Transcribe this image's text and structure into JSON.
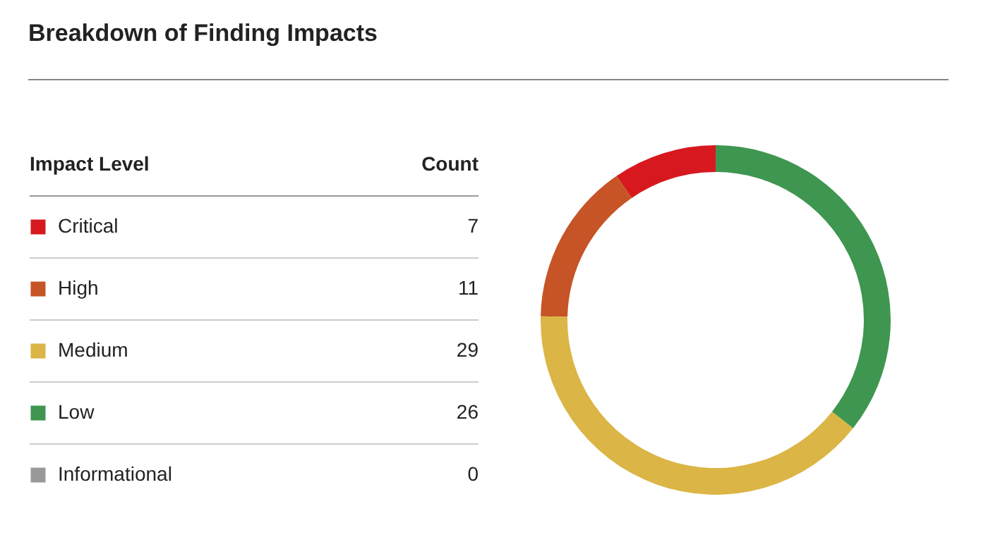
{
  "chart_data": {
    "type": "donut",
    "title": "Breakdown of Finding Impacts",
    "legend_title": "Impact Level",
    "annotations": [
      "Count"
    ],
    "categories": [
      "Critical",
      "High",
      "Medium",
      "Low",
      "Informational"
    ],
    "values": [
      7,
      11,
      29,
      26,
      0
    ],
    "colors": [
      "#d7191f",
      "#c65426",
      "#dbb545",
      "#3f9650",
      "#999999"
    ],
    "value_labels": [
      "7",
      "11",
      "29",
      "26",
      "0"
    ],
    "legend": "left"
  }
}
